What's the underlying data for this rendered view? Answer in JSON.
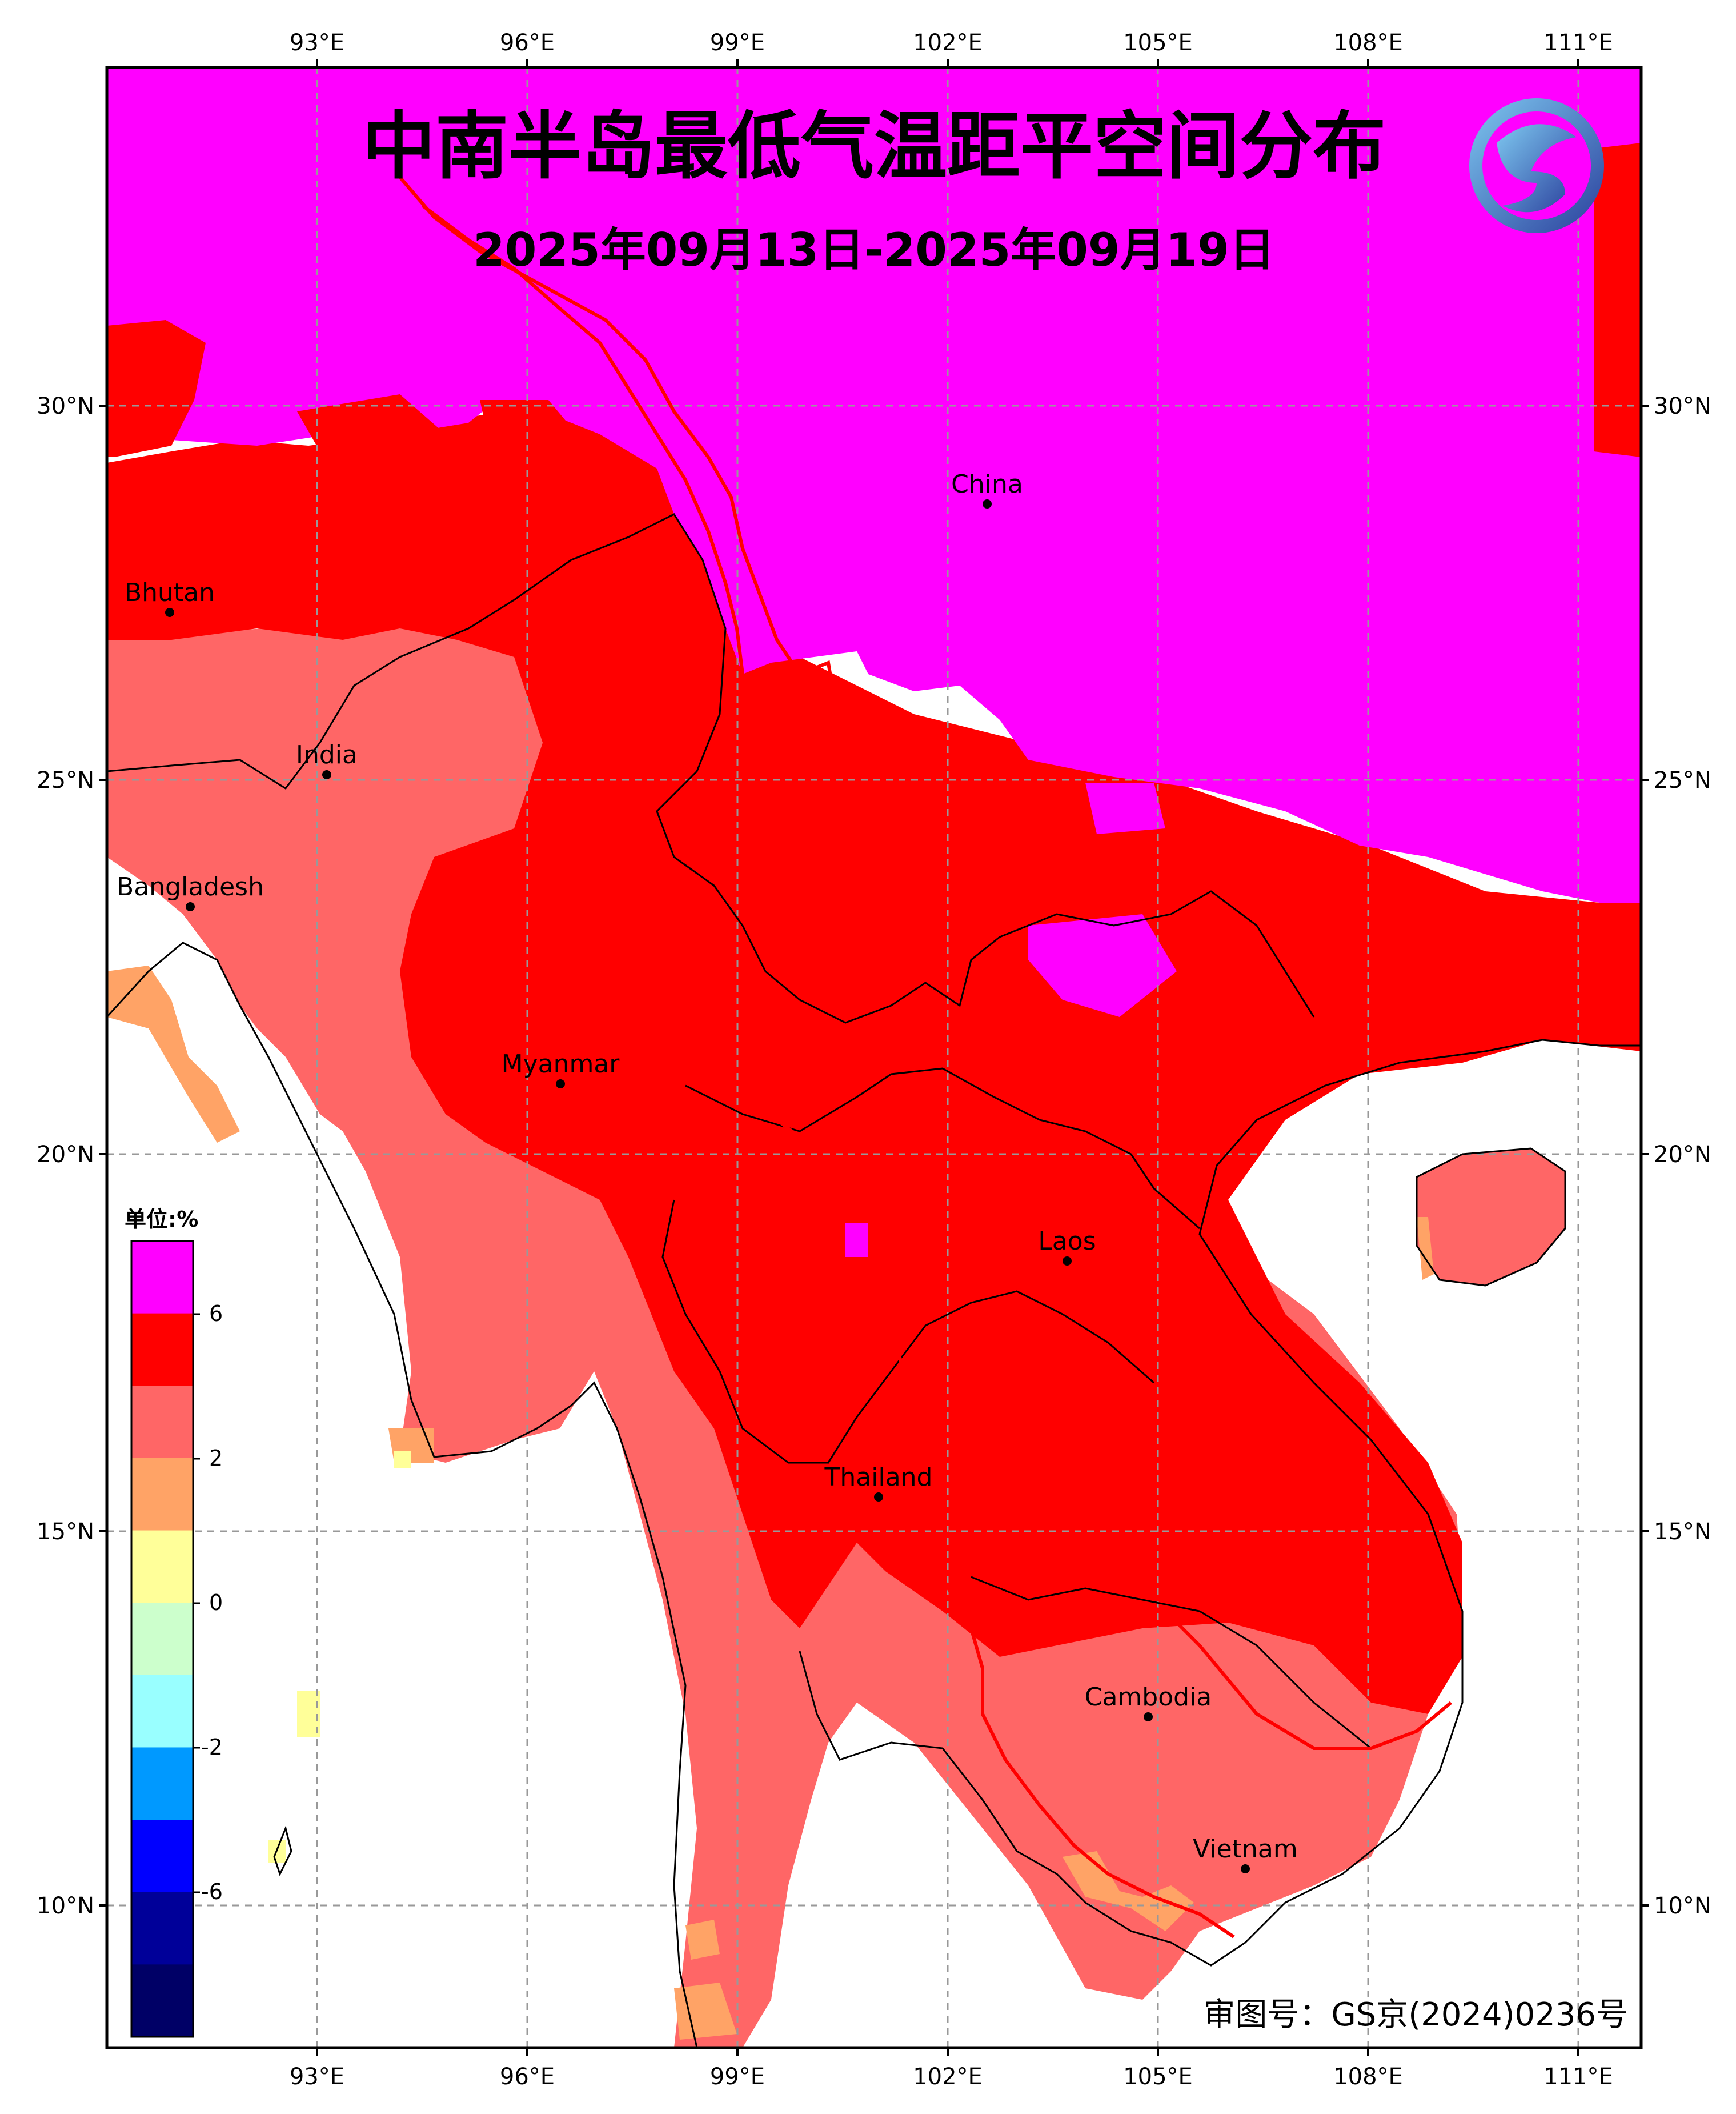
{
  "title": "中南半岛最低气温距平空间分布",
  "subtitle": "2025年09月13日-2025年09月19日",
  "axes": {
    "lon_labels": [
      "93°E",
      "96°E",
      "99°E",
      "102°E",
      "105°E",
      "108°E",
      "111°E"
    ],
    "lat_labels": [
      "30°N",
      "25°N",
      "20°N",
      "15°N",
      "10°N"
    ]
  },
  "countries": [
    {
      "name": "China"
    },
    {
      "name": "Bhutan"
    },
    {
      "name": "India"
    },
    {
      "name": "Bangladesh"
    },
    {
      "name": "Myanmar"
    },
    {
      "name": "Laos"
    },
    {
      "name": "Thailand"
    },
    {
      "name": "Cambodia"
    },
    {
      "name": "Vietnam"
    }
  ],
  "legend": {
    "unit": "单位:%",
    "tick_labels": [
      "6",
      "2",
      "0",
      "-2",
      "-6"
    ],
    "colors": [
      "#ff00ff",
      "#ff0000",
      "#ff6666",
      "#ffa366",
      "#ffff99",
      "#ccffcc",
      "#99ffff",
      "#0099ff",
      "#0000ff",
      "#000099",
      "#000066"
    ]
  },
  "approval": "审图号：GS京(2024)0236号",
  "colors": {
    "magenta": "#ff00ff",
    "red": "#ff0000",
    "salmon": "#ff6666",
    "orange": "#ffa366",
    "border": "#ff0000"
  }
}
